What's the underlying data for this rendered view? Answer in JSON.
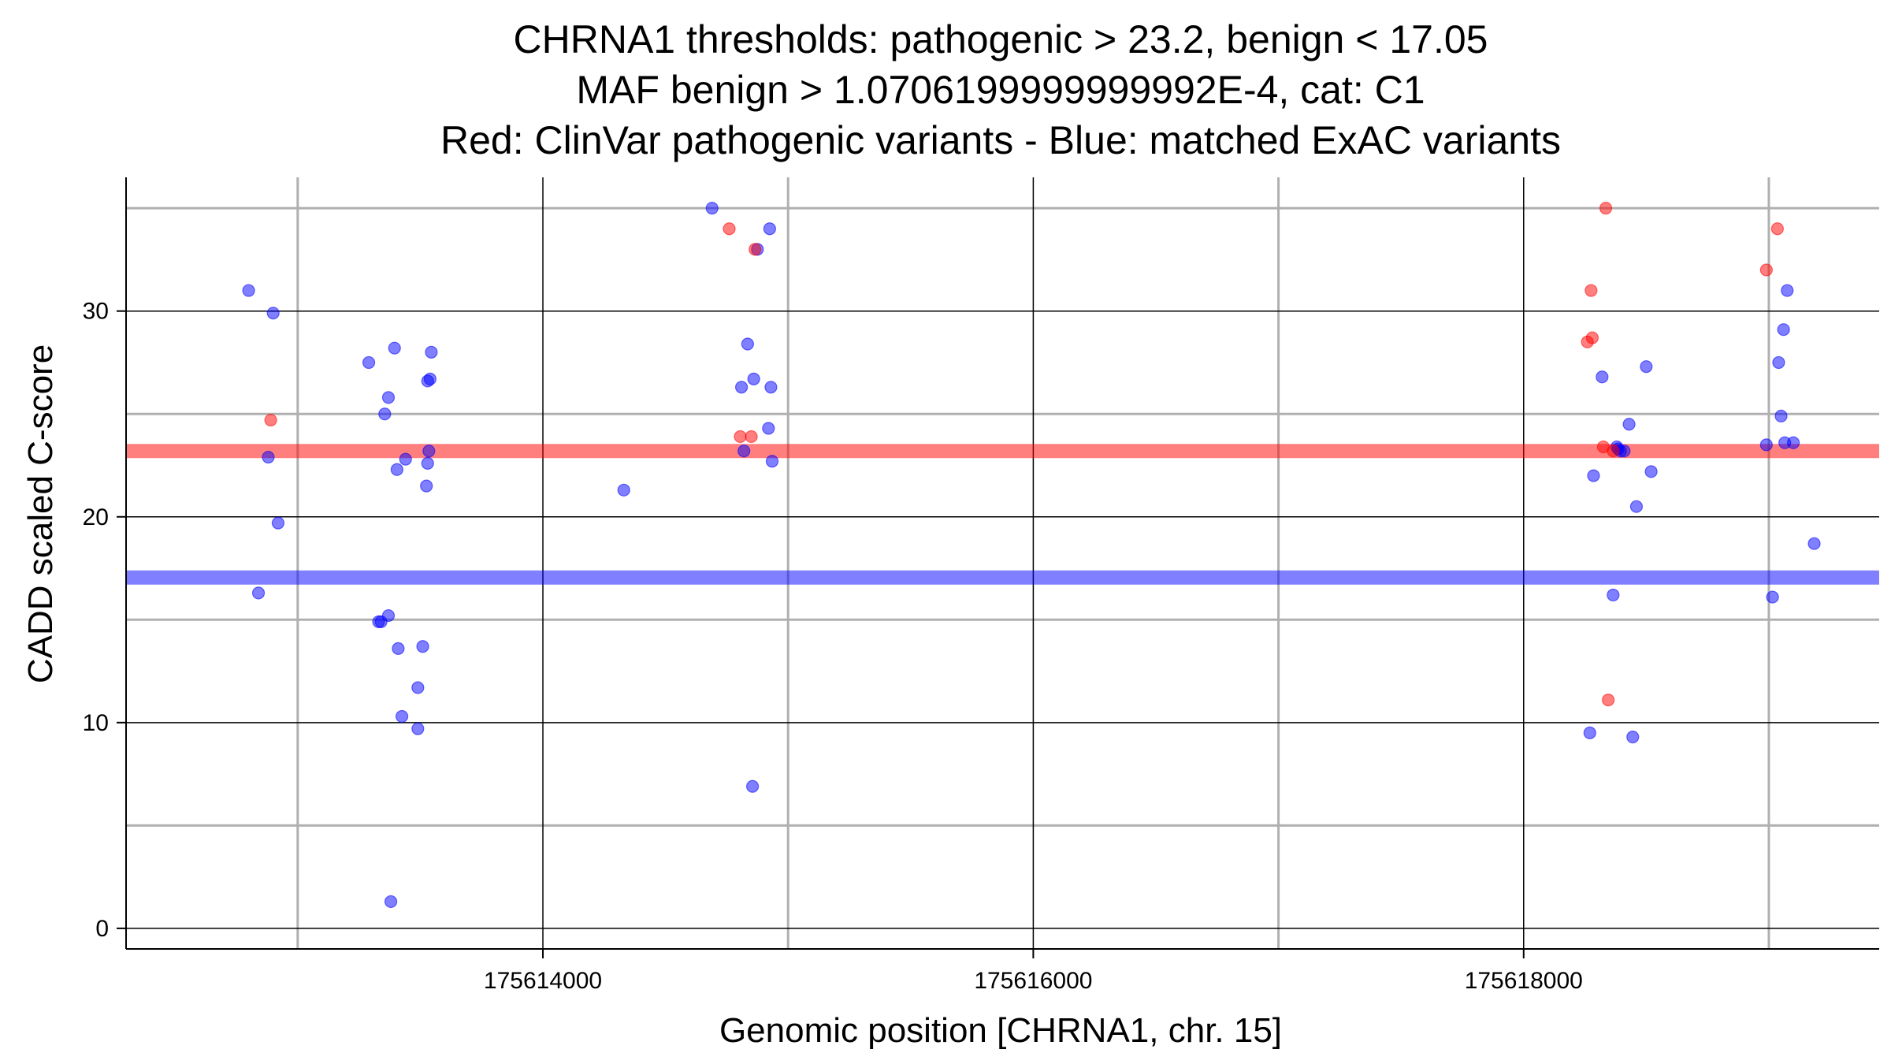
{
  "chart_data": {
    "type": "scatter",
    "title": [
      "CHRNA1 thresholds: pathogenic > 23.2, benign < 17.05",
      "MAF benign > 1.0706199999999992E-4, cat: C1",
      "Red: ClinVar pathogenic variants - Blue: matched ExAC variants"
    ],
    "xlabel": "Genomic position [CHRNA1, chr. 15]",
    "ylabel": "CADD scaled C-score",
    "xlim": [
      175612300,
      175619450
    ],
    "ylim": [
      -1,
      36.5
    ],
    "x_ticks": [
      175614000,
      175616000,
      175618000
    ],
    "x_tick_labels": [
      "175614000",
      "175616000",
      "175618000"
    ],
    "x_minor_gridlines": [
      175613000,
      175615000,
      175617000,
      175619000
    ],
    "y_ticks": [
      0,
      10,
      20,
      30
    ],
    "y_tick_labels": [
      "0",
      "10",
      "20",
      "30"
    ],
    "y_minor_gridlines": [
      5,
      15,
      25,
      35
    ],
    "grid": true,
    "thresholds": [
      {
        "name": "pathogenic",
        "value": 23.2,
        "color": "#ff0000"
      },
      {
        "name": "benign",
        "value": 17.05,
        "color": "#0000ff"
      }
    ],
    "series": [
      {
        "color": "#ff0000",
        "x": [
          175612890,
          175614760,
          175614805,
          175614850,
          175614865,
          175618260,
          175618280,
          175618275,
          175618325,
          175618335,
          175618345,
          175618365,
          175618990,
          175619035
        ],
        "y": [
          24.7,
          34,
          23.9,
          23.9,
          33,
          28.5,
          28.7,
          31,
          23.4,
          35,
          11.1,
          23.2,
          32,
          34
        ],
        "points": [
          [
            175612890,
            24.7
          ],
          [
            175612890,
            24.7
          ]
        ]
      },
      {
        "color": "#0000ff",
        "x": [
          175612800,
          175612840,
          175612880,
          175612900,
          175612920,
          175613290,
          175613330,
          175613340,
          175613355,
          175613370,
          175613370,
          175613380,
          175613395,
          175613405,
          175613410,
          175613425,
          175613440,
          175613490,
          175613490,
          175613510,
          175613530,
          175613525,
          175613535,
          175613530,
          175613540,
          175613545,
          175614330,
          175614690,
          175614810,
          175614820,
          175614835,
          175614855,
          175614860,
          175614875,
          175614925,
          175614920,
          175614930,
          175614935,
          175618270,
          175618285,
          175618320,
          175618365,
          175618380,
          175618385,
          175618395,
          175618410,
          175618430,
          175618445,
          175618460,
          175618500,
          175618520,
          175618990,
          175619015,
          175619040,
          175619050,
          175619060,
          175619065,
          175619075,
          175619100,
          175619185
        ],
        "y": [
          31,
          16.3,
          22.9,
          29.9,
          19.7,
          27.5,
          14.9,
          14.9,
          25,
          15.2,
          25.8,
          1.3,
          28.2,
          22.3,
          13.6,
          10.3,
          22.8,
          9.7,
          11.7,
          13.7,
          26.6,
          21.5,
          23.2,
          22.6,
          26.7,
          28,
          21.3,
          35,
          26.3,
          23.2,
          28.4,
          6.9,
          26.7,
          33,
          34,
          24.3,
          26.3,
          22.7,
          9.5,
          22,
          26.8,
          16.2,
          23.4,
          23.3,
          23.2,
          23.2,
          24.5,
          9.3,
          20.5,
          27.3,
          22.2,
          23.5,
          16.1,
          27.5,
          24.9,
          29.1,
          23.6,
          31,
          23.6,
          18.7
        ]
      }
    ]
  }
}
